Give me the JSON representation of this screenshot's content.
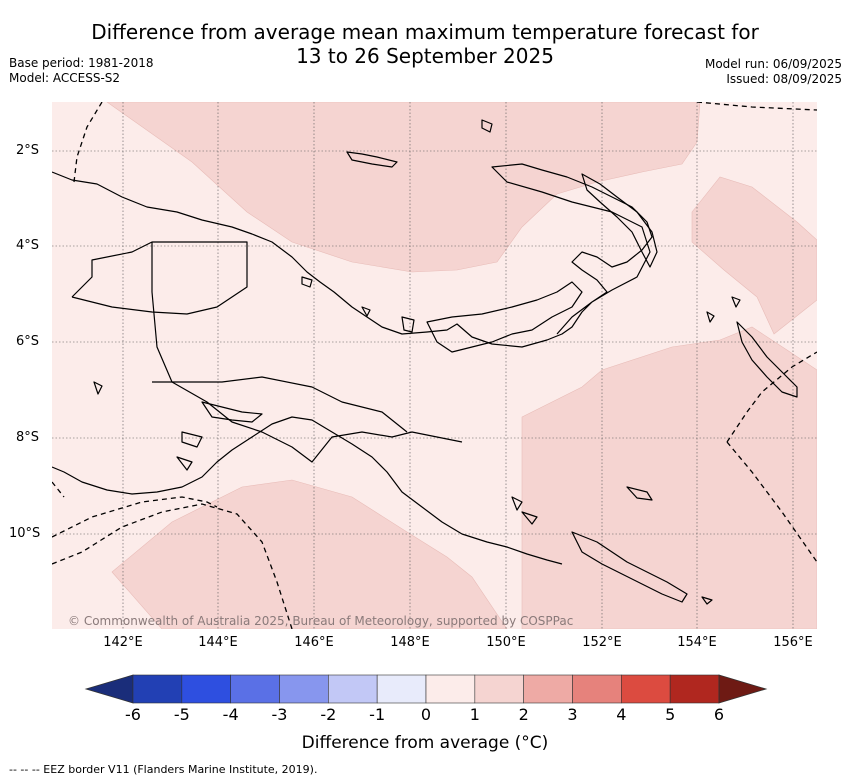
{
  "title_line1": "Difference from average mean maximum temperature forecast for",
  "title_line2": "13 to 26 September 2025",
  "base_period": "Base period: 1981-2018",
  "model": "Model: ACCESS-S2",
  "model_run": "Model run: 06/09/2025",
  "issued": "Issued: 08/09/2025",
  "lat_labels": [
    "2°S",
    "4°S",
    "6°S",
    "8°S",
    "10°S"
  ],
  "lon_labels": [
    "142°E",
    "144°E",
    "146°E",
    "148°E",
    "150°E",
    "152°E",
    "154°E",
    "156°E"
  ],
  "copyright": "© Commonwealth of Australia 2025, Bureau of Meteorology, supported by COSPPac",
  "colorbar": {
    "ticks": [
      "-6",
      "-5",
      "-4",
      "-3",
      "-2",
      "-1",
      "0",
      "1",
      "2",
      "3",
      "4",
      "5",
      "6"
    ],
    "colors": [
      "#2240b4",
      "#2e4fe0",
      "#5a70e6",
      "#8796ee",
      "#c2c8f6",
      "#e8ebfb",
      "#fcecea",
      "#f5d4d1",
      "#eeaaa5",
      "#e6827c",
      "#dc4b40",
      "#b0271f"
    ],
    "under_color": "#1a2d7a",
    "over_color": "#6e1a14",
    "label": "Difference from average (°C)"
  },
  "footnote": "-- -- -- EEZ border V11 (Flanders Marine Institute, 2019).",
  "icons": [
    "colorbar-under-arrow",
    "colorbar-over-arrow"
  ]
}
